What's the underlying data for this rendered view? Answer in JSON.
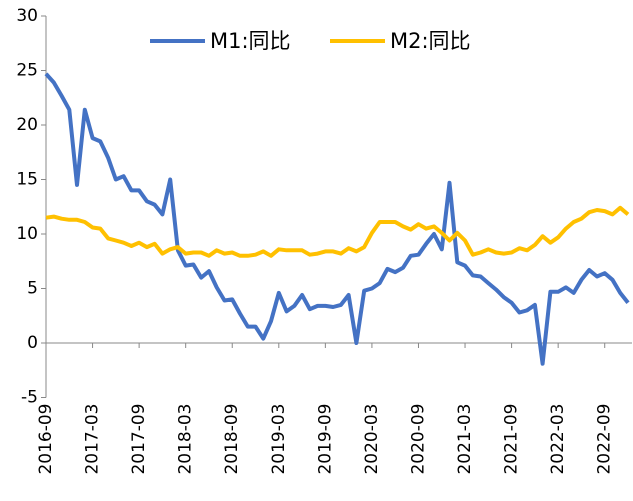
{
  "chart_data": {
    "type": "line",
    "categories": [
      "2016-09",
      null,
      null,
      null,
      null,
      null,
      "2017-03",
      null,
      null,
      null,
      null,
      null,
      "2017-09",
      null,
      null,
      null,
      null,
      null,
      "2018-03",
      null,
      null,
      null,
      null,
      null,
      "2018-09",
      null,
      null,
      null,
      null,
      null,
      "2019-03",
      null,
      null,
      null,
      null,
      null,
      "2019-09",
      null,
      null,
      null,
      null,
      null,
      "2020-03",
      null,
      null,
      null,
      null,
      null,
      "2020-09",
      null,
      null,
      null,
      null,
      null,
      "2021-03",
      null,
      null,
      null,
      null,
      null,
      "2021-09",
      null,
      null,
      null,
      null,
      null,
      "2022-03",
      null,
      null,
      null,
      null,
      null,
      "2022-09",
      null,
      null,
      null
    ],
    "series": [
      {
        "name": "M1:同比",
        "color": "#4472c4",
        "values": [
          24.7,
          23.9,
          22.7,
          21.4,
          14.5,
          21.4,
          18.8,
          18.5,
          17.0,
          15.0,
          15.3,
          14.0,
          14.0,
          13.0,
          12.7,
          11.8,
          15.0,
          8.5,
          7.1,
          7.2,
          6.0,
          6.6,
          5.1,
          3.9,
          4.0,
          2.7,
          1.5,
          1.5,
          0.4,
          2.0,
          4.6,
          2.9,
          3.4,
          4.4,
          3.1,
          3.4,
          3.4,
          3.3,
          3.5,
          4.4,
          0.0,
          4.8,
          5.0,
          5.5,
          6.8,
          6.5,
          6.9,
          8.0,
          8.1,
          9.1,
          10.0,
          8.6,
          14.7,
          7.4,
          7.1,
          6.2,
          6.1,
          5.5,
          4.9,
          4.2,
          3.7,
          2.8,
          3.0,
          3.5,
          -1.9,
          4.7,
          4.7,
          5.1,
          4.6,
          5.8,
          6.7,
          6.1,
          6.4,
          5.8,
          4.6,
          3.7
        ]
      },
      {
        "name": "M2:同比",
        "color": "#ffc000",
        "values": [
          11.5,
          11.6,
          11.4,
          11.3,
          11.3,
          11.1,
          10.6,
          10.5,
          9.6,
          9.4,
          9.2,
          8.9,
          9.2,
          8.8,
          9.1,
          8.2,
          8.6,
          8.8,
          8.2,
          8.3,
          8.3,
          8.0,
          8.5,
          8.2,
          8.3,
          8.0,
          8.0,
          8.1,
          8.4,
          8.0,
          8.6,
          8.5,
          8.5,
          8.5,
          8.1,
          8.2,
          8.4,
          8.4,
          8.2,
          8.7,
          8.4,
          8.8,
          10.1,
          11.1,
          11.1,
          11.1,
          10.7,
          10.4,
          10.9,
          10.5,
          10.7,
          10.1,
          9.4,
          10.1,
          9.4,
          8.1,
          8.3,
          8.6,
          8.3,
          8.2,
          8.3,
          8.7,
          8.5,
          9.0,
          9.8,
          9.2,
          9.7,
          10.5,
          11.1,
          11.4,
          12.0,
          12.2,
          12.1,
          11.8,
          12.4,
          11.8
        ]
      }
    ],
    "ylim": [
      -5,
      30
    ],
    "yticks": [
      -5,
      0,
      5,
      10,
      15,
      20,
      25,
      30
    ],
    "grid": false,
    "legend": "top"
  }
}
